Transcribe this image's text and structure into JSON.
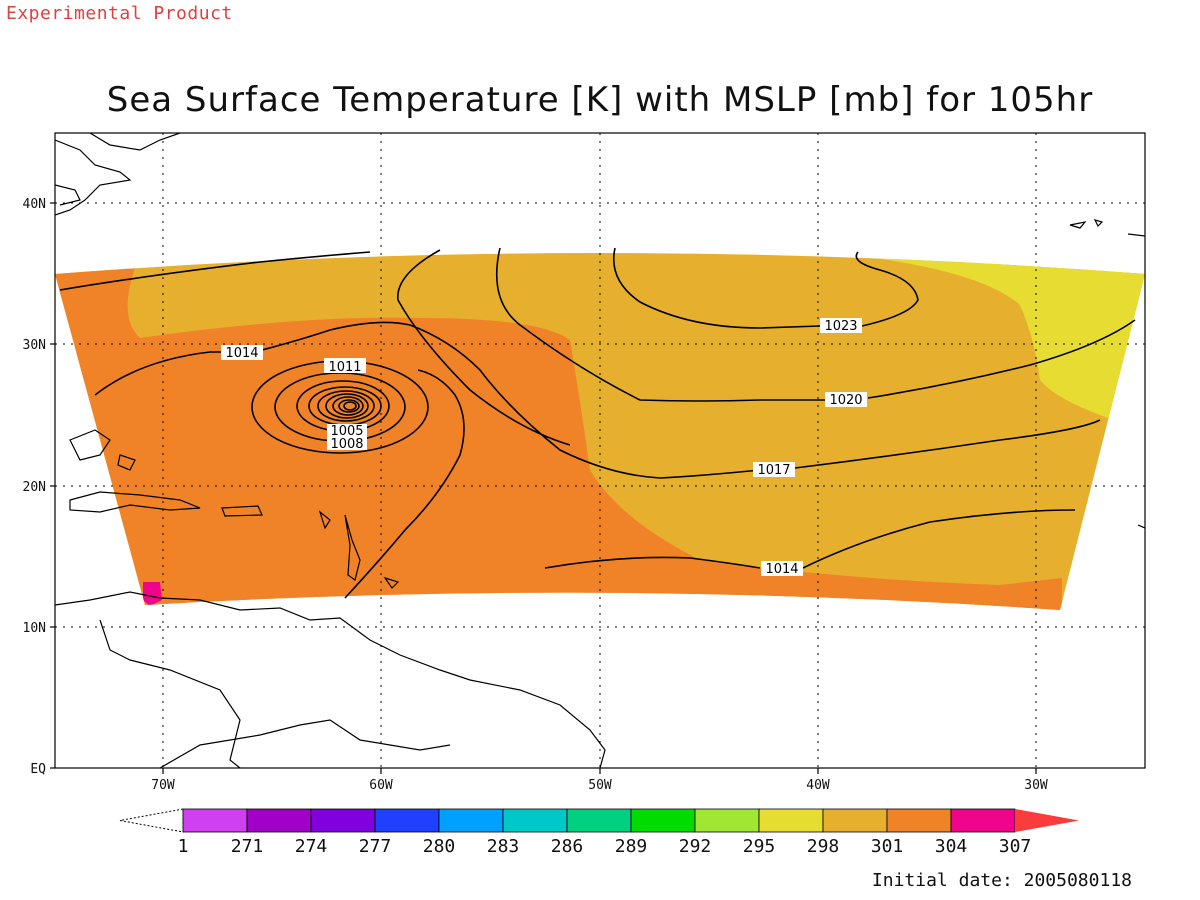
{
  "header": {
    "experimental": "Experimental Product",
    "title": "Sea Surface Temperature [K] with MSLP [mb] for 105hr",
    "initial_date": "Initial date: 2005080118"
  },
  "axes": {
    "lat_labels": [
      "EQ",
      "10N",
      "20N",
      "30N",
      "40N"
    ],
    "lon_labels": [
      "70W",
      "60W",
      "50W",
      "40W",
      "30W"
    ]
  },
  "colorbar": {
    "labels": [
      "1",
      "271",
      "274",
      "277",
      "280",
      "283",
      "286",
      "289",
      "292",
      "295",
      "298",
      "301",
      "304",
      "307"
    ],
    "colors": [
      "#d040f0",
      "#a000c8",
      "#8000e0",
      "#2040ff",
      "#00a0ff",
      "#00c8c8",
      "#00d080",
      "#00dc00",
      "#a0e632",
      "#e6dc32",
      "#e6af2d",
      "#f08228",
      "#f0048c",
      "#fa3c3c"
    ]
  },
  "contour_labels": [
    "1005",
    "1008",
    "1011",
    "1014",
    "1014",
    "1017",
    "1020",
    "1023"
  ],
  "sst_colors": {
    "zone_298": "#e6dc32",
    "zone_301": "#e6af2d",
    "zone_304": "#f08228",
    "zone_307": "#f0048c"
  }
}
